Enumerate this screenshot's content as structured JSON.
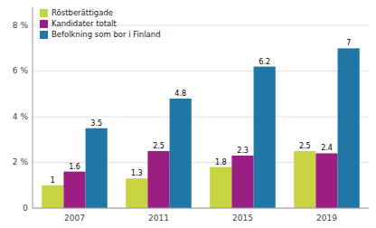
{
  "chart_data": {
    "type": "bar",
    "categories": [
      "2007",
      "2011",
      "2015",
      "2019"
    ],
    "series": [
      {
        "name": "Röstberättigade",
        "color": "#c8d441",
        "values": [
          1.0,
          1.3,
          1.8,
          2.5
        ]
      },
      {
        "name": "Kandidater totalt",
        "color": "#9b1f82",
        "values": [
          1.6,
          2.5,
          2.3,
          2.4
        ]
      },
      {
        "name": "Befolkning som bor i Finland",
        "color": "#2176a8",
        "values": [
          3.5,
          4.8,
          6.2,
          7.0
        ]
      }
    ],
    "ylim": [
      0,
      8.8
    ],
    "yticks": [
      0,
      {
        "value": 2,
        "label": "2 %"
      },
      {
        "value": 4,
        "label": "4 %"
      },
      {
        "value": 6,
        "label": "6 %"
      },
      {
        "value": 8,
        "label": "8 %"
      }
    ],
    "grid": true,
    "legend": "upper left",
    "data_labels": true
  }
}
